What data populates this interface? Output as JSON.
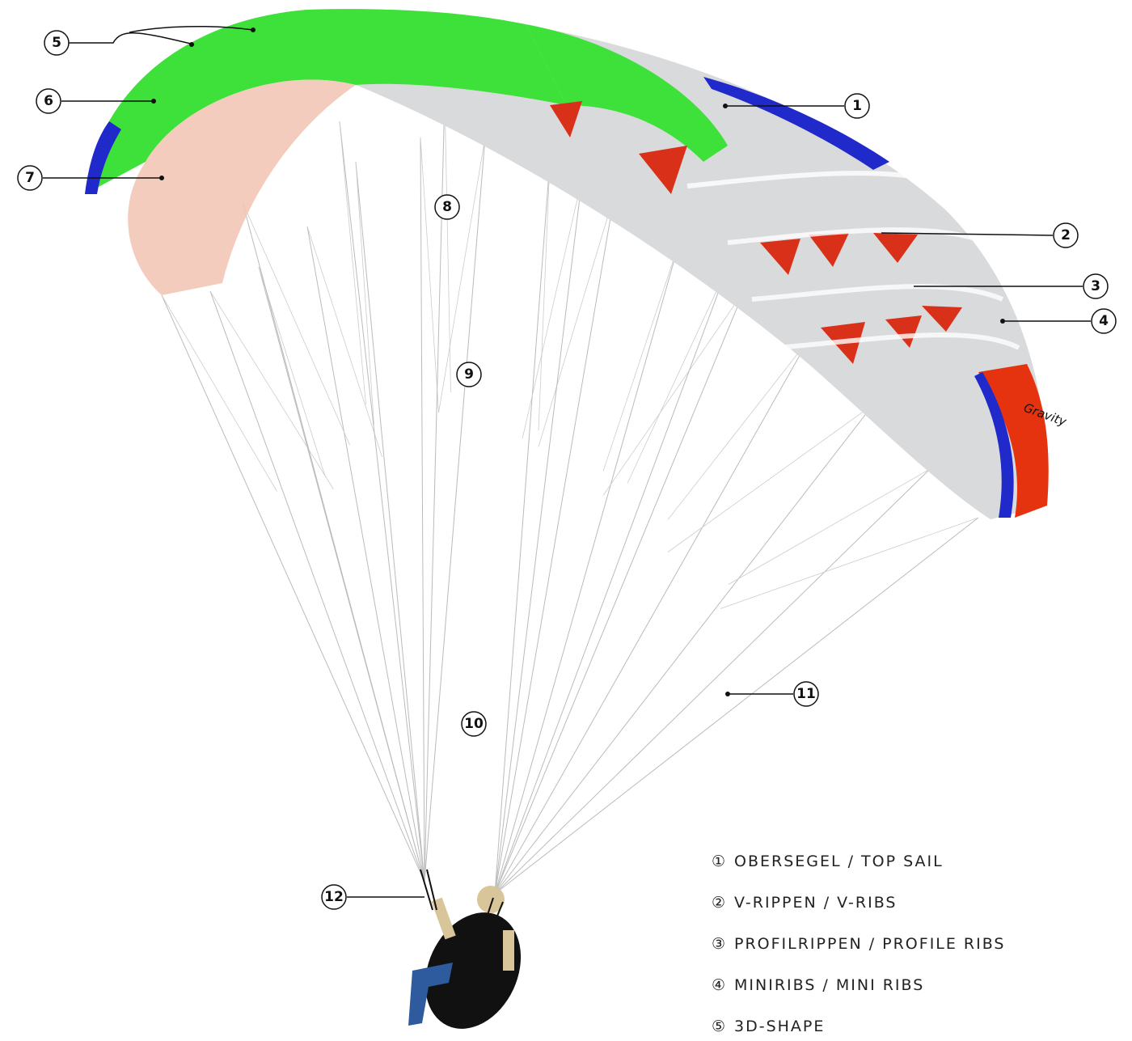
{
  "callouts": [
    {
      "label": "1"
    },
    {
      "label": "2"
    },
    {
      "label": "3"
    },
    {
      "label": "4"
    },
    {
      "label": "5"
    },
    {
      "label": "6"
    },
    {
      "label": "7"
    },
    {
      "label": "8"
    },
    {
      "label": "9"
    },
    {
      "label": "10"
    },
    {
      "label": "11"
    },
    {
      "label": "12"
    }
  ],
  "legend": [
    {
      "number": "①",
      "text": "OBERSEGEL / TOP SAIL"
    },
    {
      "number": "②",
      "text": "V-RIPPEN / V-RIBS"
    },
    {
      "number": "③",
      "text": "PROFILRIPPEN / PROFILE RIBS"
    },
    {
      "number": "④",
      "text": "MINIRIBS / MINI RIBS"
    },
    {
      "number": "⑤",
      "text": "3D-SHAPE"
    }
  ],
  "brand": "Gravity"
}
